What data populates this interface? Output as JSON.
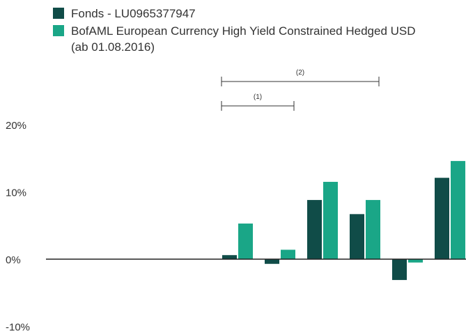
{
  "chart_data": {
    "type": "bar",
    "categories": [
      "",
      "",
      "",
      "",
      "",
      "",
      "",
      "",
      "",
      ""
    ],
    "series": [
      {
        "name": "Fonds - LU0965377947",
        "color": "#104c48",
        "values": [
          null,
          null,
          null,
          null,
          0.6,
          -0.7,
          8.8,
          6.7,
          -3.1,
          12.1
        ]
      },
      {
        "name": "BofAML European Currency High Yield Constrained Hedged USD (ab 01.08.2016)",
        "color": "#1aa687",
        "values": [
          null,
          null,
          null,
          null,
          5.3,
          1.4,
          11.5,
          8.8,
          -0.5,
          14.6
        ]
      }
    ],
    "ylim": [
      -10,
      20
    ],
    "yticks": [
      {
        "value": 20,
        "label": "20%"
      },
      {
        "value": 10,
        "label": "10%"
      },
      {
        "value": 0,
        "label": "0%"
      },
      {
        "value": -10,
        "label": "-10%"
      }
    ],
    "annotations": [
      {
        "label": "(1)",
        "from_index": 4,
        "to_index": 5
      },
      {
        "label": "(2)",
        "from_index": 4,
        "to_index": 7
      }
    ],
    "grid": false,
    "legend_position": "top-left",
    "title": "",
    "xlabel": "",
    "ylabel": ""
  }
}
